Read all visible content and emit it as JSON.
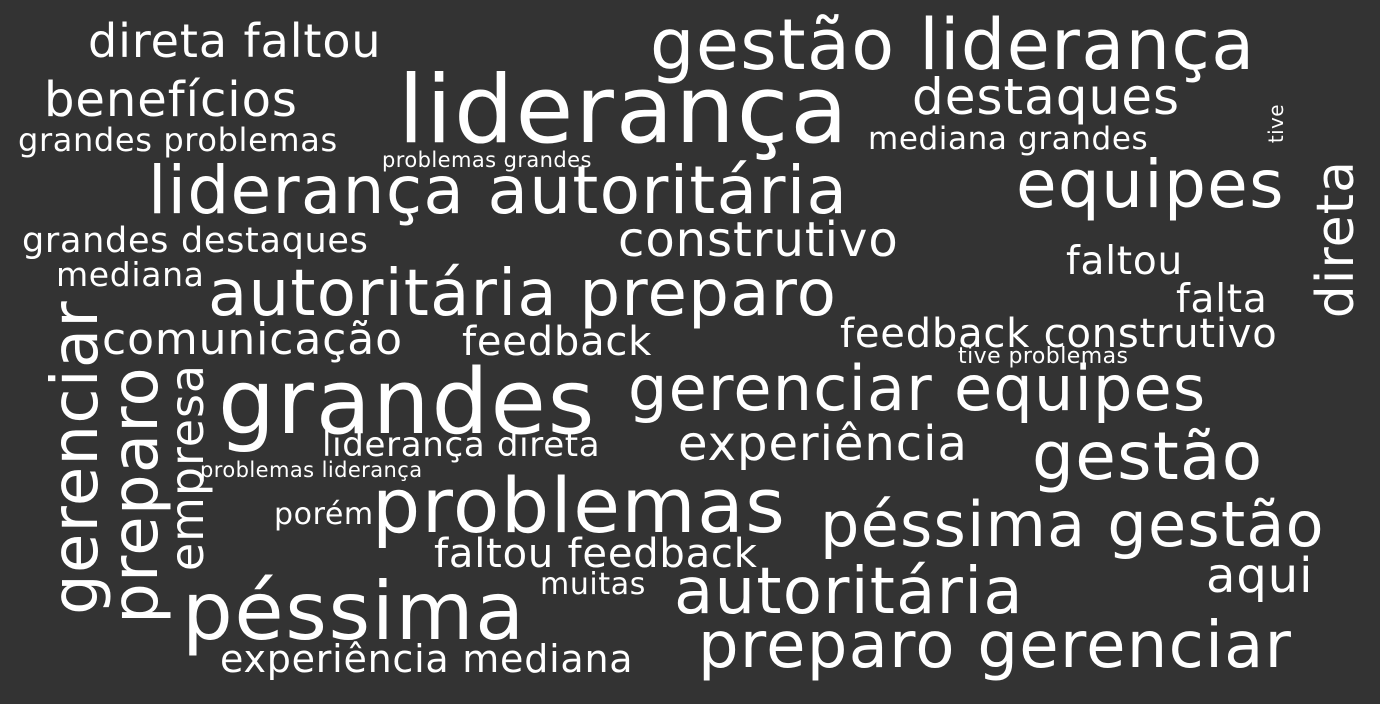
{
  "background_color": "#333333",
  "text_color": "#ffffff",
  "words": [
    {
      "text": "direta faltou"
    },
    {
      "text": "gestão liderança"
    },
    {
      "text": "benefícios"
    },
    {
      "text": "liderança"
    },
    {
      "text": "destaques"
    },
    {
      "text": "grandes problemas"
    },
    {
      "text": "mediana grandes"
    },
    {
      "text": "tive"
    },
    {
      "text": "problemas grandes"
    },
    {
      "text": "liderança autoritária"
    },
    {
      "text": "equipes"
    },
    {
      "text": "direta"
    },
    {
      "text": "grandes destaques"
    },
    {
      "text": "construtivo"
    },
    {
      "text": "faltou"
    },
    {
      "text": "mediana"
    },
    {
      "text": "autoritária preparo"
    },
    {
      "text": "falta"
    },
    {
      "text": "comunicação"
    },
    {
      "text": "feedback"
    },
    {
      "text": "feedback construtivo"
    },
    {
      "text": "gerenciar"
    },
    {
      "text": "preparo"
    },
    {
      "text": "empresa"
    },
    {
      "text": "tive problemas"
    },
    {
      "text": "grandes"
    },
    {
      "text": "gerenciar equipes"
    },
    {
      "text": "liderança direta"
    },
    {
      "text": "experiência"
    },
    {
      "text": "gestão"
    },
    {
      "text": "problemas liderança"
    },
    {
      "text": "problemas"
    },
    {
      "text": "porém"
    },
    {
      "text": "péssima gestão"
    },
    {
      "text": "faltou feedback"
    },
    {
      "text": "aqui"
    },
    {
      "text": "muitas"
    },
    {
      "text": "autoritária"
    },
    {
      "text": "péssima"
    },
    {
      "text": "experiência mediana"
    },
    {
      "text": "preparo gerenciar"
    }
  ]
}
